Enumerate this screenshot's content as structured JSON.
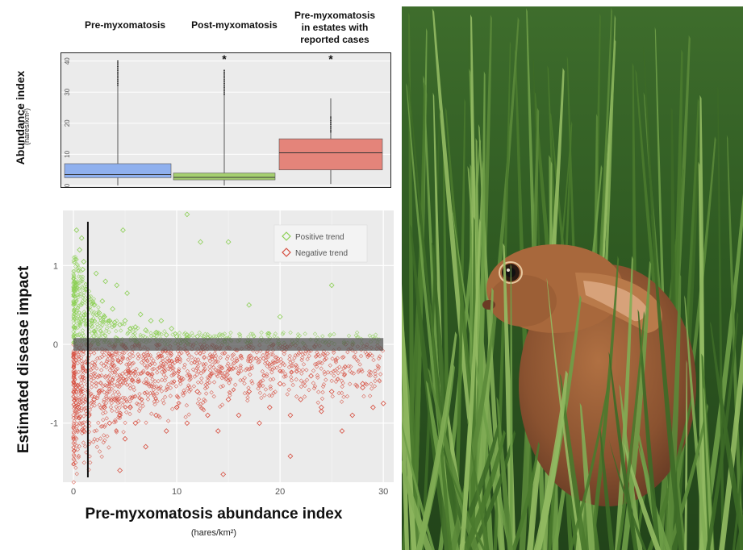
{
  "chart_data": [
    {
      "type": "box",
      "categories": [
        "Pre-myxomatosis",
        "Post-myxomatosis",
        "Pre-myxomatosis in estates with reported cases"
      ],
      "title_lines": [
        [
          "Pre-myxomatosis"
        ],
        [
          "Post-myxomatosis"
        ],
        [
          "Pre-myxomatosis",
          "in estates with",
          "reported cases"
        ]
      ],
      "ylabel": "Abundance index",
      "ylabel_unit": "(hares/km²)",
      "ylim": [
        0,
        42
      ],
      "yticks": [
        0,
        10,
        20,
        30,
        40
      ],
      "boxes": [
        {
          "q1": 2.5,
          "median": 3.5,
          "q3": 7,
          "whisker_low": 0,
          "whisker_high": 40,
          "color": "#8fb0ee",
          "significance": ""
        },
        {
          "q1": 1.8,
          "median": 2.6,
          "q3": 4,
          "whisker_low": 0,
          "whisker_high": 37,
          "color": "#a5cf6f",
          "significance": "*"
        },
        {
          "q1": 5,
          "median": 10.5,
          "q3": 15,
          "whisker_low": 0.5,
          "whisker_high": 28,
          "color": "#e4847a",
          "significance": "*"
        }
      ]
    },
    {
      "type": "scatter",
      "xlabel": "Pre-myxomatosis abundance index",
      "xlabel_unit": "(hares/km²)",
      "ylabel": "Estimated disease impact",
      "xlim": [
        0,
        31
      ],
      "ylim": [
        -1.75,
        1.7
      ],
      "xticks": [
        0,
        10,
        20,
        30
      ],
      "yticks": [
        -1,
        0,
        1
      ],
      "ytick_labels": [
        "-1",
        "0",
        "1"
      ],
      "series": [
        {
          "name": "Positive trend",
          "color": "#8ccf55"
        },
        {
          "name": "Negative trend",
          "color": "#d64e3f"
        }
      ],
      "vertical_line_x": 1.4,
      "zero_band": [
        -0.08,
        0.08
      ],
      "points_positive": [
        [
          0.3,
          1.45
        ],
        [
          0.6,
          1.2
        ],
        [
          0.9,
          0.95
        ],
        [
          1.2,
          0.7
        ],
        [
          1.5,
          0.6
        ],
        [
          2,
          0.5
        ],
        [
          2.5,
          0.4
        ],
        [
          3,
          0.35
        ],
        [
          3.5,
          0.3
        ],
        [
          4,
          0.28
        ],
        [
          4.5,
          0.25
        ],
        [
          5,
          0.3
        ],
        [
          5.5,
          0.2
        ],
        [
          6,
          0.22
        ],
        [
          7,
          0.18
        ],
        [
          8,
          0.15
        ],
        [
          9,
          0.12
        ],
        [
          10,
          0.1
        ],
        [
          11,
          0.12
        ],
        [
          12,
          0.1
        ],
        [
          13,
          0.08
        ],
        [
          1,
          1.05
        ],
        [
          2.2,
          0.9
        ],
        [
          3.1,
          0.8
        ],
        [
          4.2,
          0.75
        ],
        [
          4.8,
          1.45
        ],
        [
          11,
          1.65
        ],
        [
          12.3,
          1.3
        ],
        [
          15,
          1.3
        ],
        [
          17,
          0.5
        ],
        [
          20,
          0.35
        ],
        [
          25,
          0.75
        ],
        [
          0.8,
          1.35
        ],
        [
          1.8,
          0.3
        ],
        [
          2.8,
          0.55
        ],
        [
          3.8,
          0.45
        ],
        [
          6.5,
          0.38
        ],
        [
          7.5,
          0.3
        ],
        [
          8.5,
          0.3
        ],
        [
          9.5,
          0.2
        ],
        [
          5.2,
          0.65
        ]
      ],
      "points_negative": [
        [
          0.5,
          -0.8
        ],
        [
          1,
          -1.1
        ],
        [
          1.5,
          -0.9
        ],
        [
          2,
          -0.7
        ],
        [
          2.5,
          -0.6
        ],
        [
          3,
          -0.8
        ],
        [
          3.5,
          -1.0
        ],
        [
          4,
          -0.7
        ],
        [
          4.5,
          -0.9
        ],
        [
          5,
          -1.2
        ],
        [
          5.5,
          -0.8
        ],
        [
          6,
          -1.0
        ],
        [
          7,
          -1.3
        ],
        [
          8,
          -0.9
        ],
        [
          9,
          -1.1
        ],
        [
          10,
          -0.8
        ],
        [
          11,
          -1.0
        ],
        [
          12,
          -0.6
        ],
        [
          13,
          -0.9
        ],
        [
          14,
          -1.1
        ],
        [
          15,
          -0.7
        ],
        [
          16,
          -0.9
        ],
        [
          17,
          -0.6
        ],
        [
          18,
          -1.0
        ],
        [
          19,
          -0.8
        ],
        [
          20,
          -0.5
        ],
        [
          21,
          -0.9
        ],
        [
          22,
          -0.7
        ],
        [
          23,
          -0.4
        ],
        [
          24,
          -0.8
        ],
        [
          25,
          -0.6
        ],
        [
          26,
          -1.1
        ],
        [
          27,
          -0.9
        ],
        [
          28,
          -0.5
        ],
        [
          29,
          -0.8
        ],
        [
          30,
          -0.75
        ],
        [
          4.5,
          -1.6
        ],
        [
          14.5,
          -1.65
        ],
        [
          21,
          -1.42
        ],
        [
          24,
          -0.85
        ],
        [
          28,
          -0.55
        ]
      ]
    }
  ],
  "photo": {
    "description_icon": "hare-in-grass-photo"
  }
}
